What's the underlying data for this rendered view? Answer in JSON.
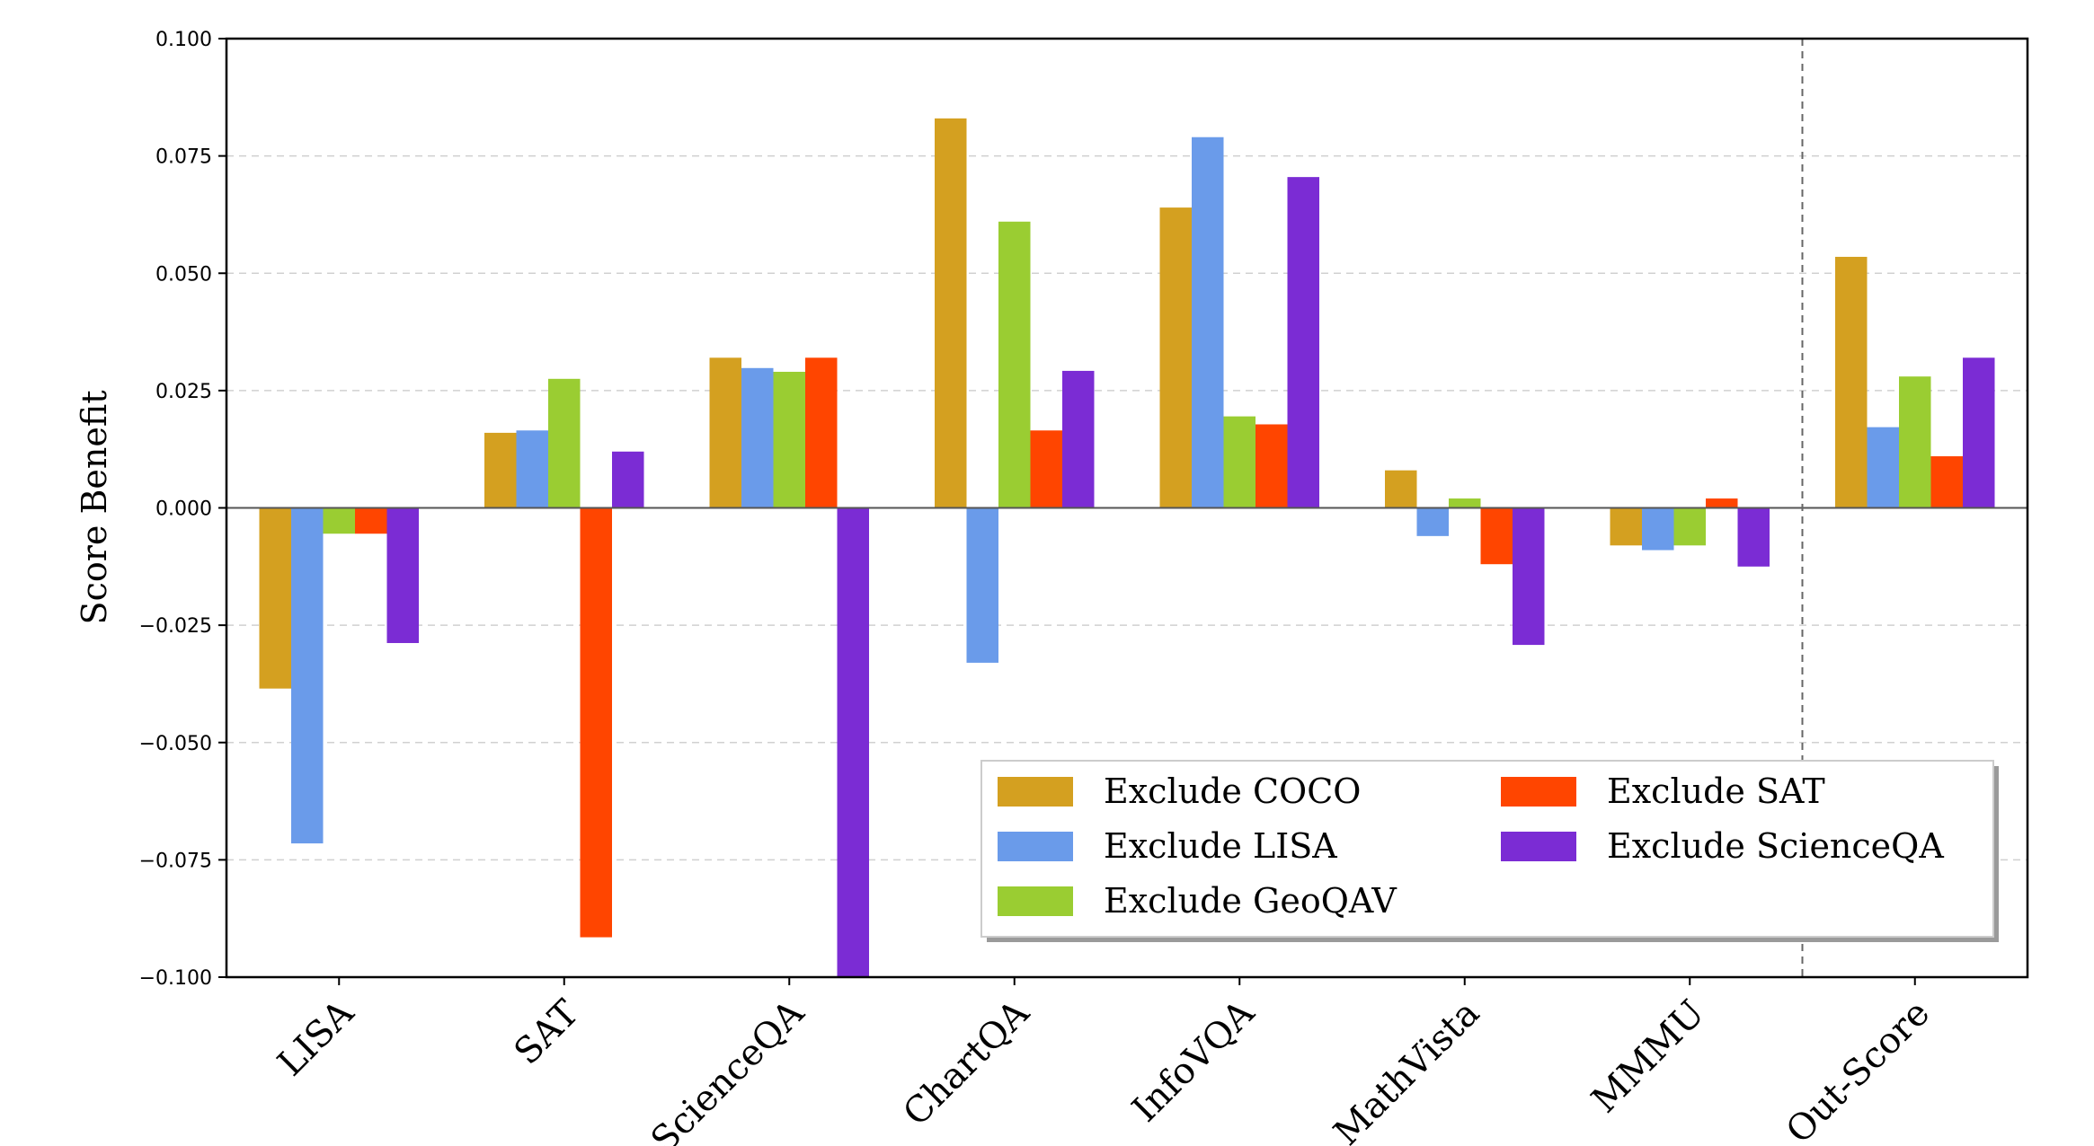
{
  "chart_data": {
    "type": "bar",
    "title": "",
    "xlabel": "",
    "ylabel": "Score Benefit",
    "ylim": [
      -0.1,
      0.1
    ],
    "yticks": [
      0.1,
      0.075,
      0.05,
      0.025,
      0.0,
      -0.025,
      -0.05,
      -0.075,
      -0.1
    ],
    "ytick_labels": [
      "0.100",
      "0.075",
      "0.050",
      "0.025",
      "0.000",
      "−0.025",
      "−0.050",
      "−0.075",
      "−0.100"
    ],
    "grid": true,
    "legend_position": "lower-right",
    "separator_after_category": "MMMU",
    "categories": [
      "LISA",
      "SAT",
      "ScienceQA",
      "ChartQA",
      "InfoVQA",
      "MathVista",
      "MMMU",
      "Out-Score"
    ],
    "series": [
      {
        "name": "Exclude COCO",
        "color": "#D4A020",
        "values": [
          -0.0385,
          0.016,
          0.032,
          0.083,
          0.064,
          0.008,
          -0.008,
          0.0535
        ]
      },
      {
        "name": "Exclude LISA",
        "color": "#6A9BEA",
        "values": [
          -0.0715,
          0.0165,
          0.0298,
          -0.033,
          0.079,
          -0.006,
          -0.009,
          0.0172
        ]
      },
      {
        "name": "Exclude GeoQAV",
        "color": "#9ACD32",
        "values": [
          -0.0055,
          0.0275,
          0.029,
          0.061,
          0.0195,
          0.002,
          -0.008,
          0.028
        ]
      },
      {
        "name": "Exclude SAT",
        "color": "#FF4500",
        "values": [
          -0.0055,
          -0.0915,
          0.032,
          0.0165,
          0.0178,
          -0.012,
          0.002,
          0.011
        ]
      },
      {
        "name": "Exclude ScienceQA",
        "color": "#7B2CD4",
        "values": [
          -0.0288,
          0.012,
          -0.1,
          0.0292,
          0.0705,
          -0.0292,
          -0.0125,
          0.032
        ]
      }
    ]
  }
}
